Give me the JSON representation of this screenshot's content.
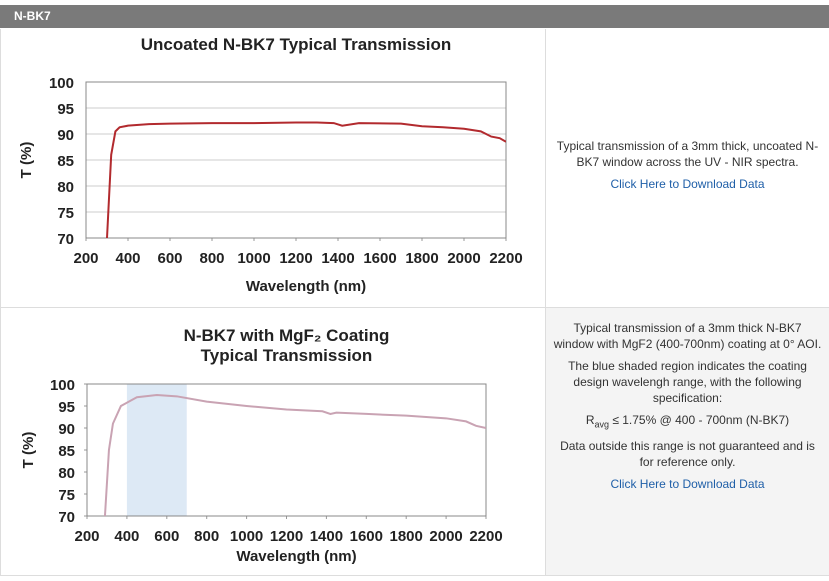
{
  "header": {
    "title": "N-BK7"
  },
  "chart_data": [
    {
      "type": "line",
      "title": "Uncoated N-BK7 Typical Transmission",
      "xlabel": "Wavelength (nm)",
      "ylabel": "T (%)",
      "x": [
        300,
        320,
        340,
        360,
        400,
        500,
        600,
        800,
        1000,
        1200,
        1300,
        1380,
        1420,
        1500,
        1700,
        1800,
        1900,
        2000,
        2080,
        2130,
        2170,
        2200
      ],
      "values": [
        70,
        86,
        90.5,
        91.3,
        91.6,
        91.9,
        92,
        92.1,
        92.1,
        92.2,
        92.2,
        92.1,
        91.6,
        92.1,
        92,
        91.5,
        91.3,
        91,
        90.5,
        89.5,
        89.2,
        88.5
      ],
      "color": "#b22a2e",
      "xlim": [
        200,
        2200
      ],
      "ylim": [
        70,
        100
      ],
      "xticks": [
        200,
        400,
        600,
        800,
        1000,
        1200,
        1400,
        1600,
        1800,
        2000,
        2200
      ],
      "yticks": [
        70,
        75,
        80,
        85,
        90,
        95,
        100
      ],
      "grid": true
    },
    {
      "type": "line",
      "title": "N-BK7 with MgF₂ Coating",
      "subtitle": "Typical Transmission",
      "xlabel": "Wavelength (nm)",
      "ylabel": "T (%)",
      "x": [
        290,
        310,
        330,
        370,
        450,
        550,
        650,
        800,
        1000,
        1200,
        1380,
        1420,
        1450,
        1600,
        1800,
        2000,
        2100,
        2150,
        2200
      ],
      "values": [
        70,
        85,
        91,
        95,
        97,
        97.5,
        97.2,
        96,
        95,
        94.2,
        93.8,
        93.2,
        93.5,
        93.2,
        92.8,
        92.2,
        91.5,
        90.5,
        90
      ],
      "color": "#c9a3b3",
      "shaded_range": [
        400,
        700
      ],
      "shade_color": "#dde9f5",
      "xlim": [
        200,
        2200
      ],
      "ylim": [
        70,
        100
      ],
      "xticks": [
        200,
        400,
        600,
        800,
        1000,
        1200,
        1400,
        1600,
        1800,
        2000,
        2200
      ],
      "yticks": [
        70,
        75,
        80,
        85,
        90,
        95,
        100
      ],
      "grid": false
    }
  ],
  "panels": [
    {
      "text": "Typical transmission of a 3mm thick, uncoated N-BK7 window across the UV - NIR spectra.",
      "link": "Click Here to Download Data"
    },
    {
      "text": "Typical transmission of a 3mm thick N-BK7 window with MgF2 (400-700nm) coating at 0° AOI.",
      "text2": "The blue shaded region indicates the coating design wavelengh range, with the following specification:",
      "spec": {
        "symbol": "R",
        "subscript": "avg",
        "text": " ≤ 1.75% @ 400 - 700nm (N-BK7)"
      },
      "text3": "Data outside this range is not guaranteed and is for reference only.",
      "link": "Click Here to Download Data"
    }
  ]
}
